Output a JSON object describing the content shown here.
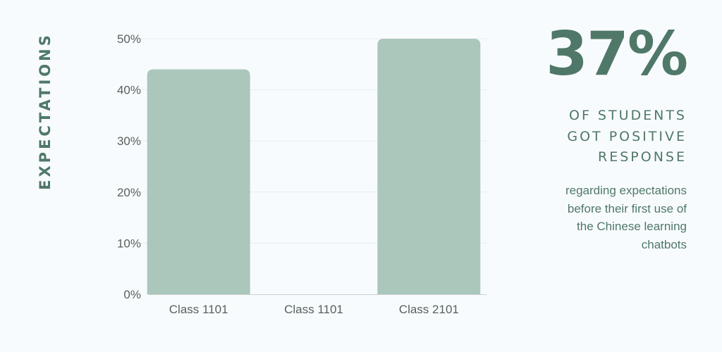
{
  "page_title": "EXPECTATIONS",
  "chart_data": {
    "type": "bar",
    "categories": [
      "Class 1101",
      "Class 1101",
      "Class 2101"
    ],
    "values": [
      44,
      0,
      50
    ],
    "ylim": [
      0,
      50
    ],
    "yticks": [
      "0%",
      "10%",
      "20%",
      "30%",
      "40%",
      "50%"
    ],
    "ytick_values": [
      0,
      10,
      20,
      30,
      40,
      50
    ],
    "bar_color": "#abc7bc",
    "grid": true,
    "grid_color": "#e6ecf0",
    "axis_color": "#c9d3d0"
  },
  "stat": {
    "value": "37%",
    "headline_lines": [
      "OF STUDENTS",
      "GOT POSITIVE",
      "RESPONSE"
    ],
    "description_lines": [
      "regarding expectations",
      "before their first use of",
      "the Chinese learning",
      "chatbots"
    ],
    "accent_color": "#4f7868"
  }
}
